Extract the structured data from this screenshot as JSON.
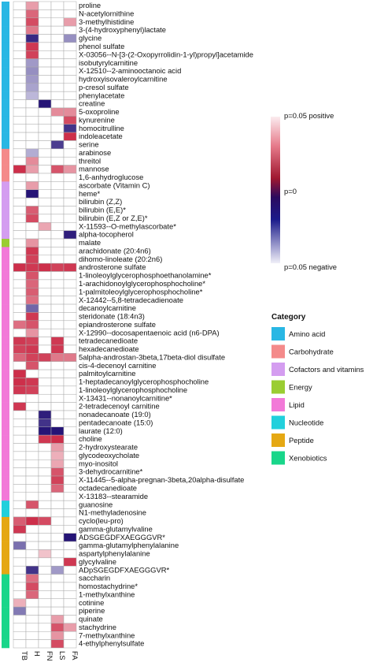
{
  "chart_data": {
    "type": "heatmap",
    "columns": [
      "TB",
      "H",
      "FN",
      "LS",
      "FA"
    ],
    "color_scale": {
      "labels": [
        "p=0.05 positive",
        "p=0",
        "p=0.05 negative"
      ],
      "colors": [
        "#f2c6ce",
        "#d53044",
        "#2b0a5e",
        "#1a1a8a",
        "#d8d6ec"
      ]
    },
    "category_legend": {
      "title": "Category",
      "items": [
        {
          "name": "Amino acid",
          "color": "#29b7e4"
        },
        {
          "name": "Carbohydrate",
          "color": "#f48a8a"
        },
        {
          "name": "Cofactors and vitamins",
          "color": "#d49df0"
        },
        {
          "name": "Energy",
          "color": "#9acd32"
        },
        {
          "name": "Lipid",
          "color": "#f279d8"
        },
        {
          "name": "Nucleotide",
          "color": "#22d0dc"
        },
        {
          "name": "Peptide",
          "color": "#e5a813"
        },
        {
          "name": "Xenobiotics",
          "color": "#19d68a"
        }
      ]
    },
    "rows": [
      {
        "label": "proline",
        "category": "Amino acid",
        "values": [
          0,
          0.3,
          0,
          0,
          0
        ]
      },
      {
        "label": "N-acetylornithine",
        "category": "Amino acid",
        "values": [
          0,
          0.6,
          0,
          0,
          0
        ]
      },
      {
        "label": "3-methylhistidine",
        "category": "Amino acid",
        "values": [
          0,
          0.75,
          0,
          0,
          0.3
        ]
      },
      {
        "label": "3-(4-hydroxyphenyl)lactate",
        "category": "Amino acid",
        "values": [
          0,
          0.5,
          0,
          0,
          0
        ]
      },
      {
        "label": "glycine",
        "category": "Amino acid",
        "values": [
          0,
          -0.85,
          0,
          0,
          -0.35
        ]
      },
      {
        "label": "phenol sulfate",
        "category": "Amino acid",
        "values": [
          0,
          0.85,
          0,
          0,
          0
        ]
      },
      {
        "label": "X-03056--N-[3-(2-Oxopyrrolidin-1-yl)propyl]acetamide",
        "category": "Amino acid",
        "values": [
          0,
          0.8,
          0,
          0,
          0
        ]
      },
      {
        "label": "isobutyrylcarnitine",
        "category": "Amino acid",
        "values": [
          0,
          -0.3,
          0,
          0,
          0
        ]
      },
      {
        "label": "X-12510--2-aminooctanoic acid",
        "category": "Amino acid",
        "values": [
          0,
          -0.35,
          0,
          0,
          0
        ]
      },
      {
        "label": "hydroxyisovaleroylcarnitine",
        "category": "Amino acid",
        "values": [
          0,
          -0.3,
          0,
          0,
          0
        ]
      },
      {
        "label": "p-cresol sulfate",
        "category": "Amino acid",
        "values": [
          0,
          -0.25,
          0,
          0,
          0
        ]
      },
      {
        "label": "phenylacetate",
        "category": "Amino acid",
        "values": [
          0,
          -0.15,
          0,
          0,
          0
        ]
      },
      {
        "label": "creatine",
        "category": "Amino acid",
        "values": [
          0,
          0,
          -0.95,
          0,
          0
        ]
      },
      {
        "label": "5-oxoproline",
        "category": "Amino acid",
        "values": [
          0,
          0,
          0,
          0.4,
          0.4
        ]
      },
      {
        "label": "kynurenine",
        "category": "Amino acid",
        "values": [
          0,
          0,
          0,
          0,
          0.75
        ]
      },
      {
        "label": "homocitrulline",
        "category": "Amino acid",
        "values": [
          0,
          0,
          0,
          0,
          -0.8
        ]
      },
      {
        "label": "indoleacetate",
        "category": "Amino acid",
        "values": [
          0,
          0,
          0,
          0,
          0.9
        ]
      },
      {
        "label": "serine",
        "category": "Amino acid",
        "values": [
          0,
          0,
          0,
          -0.75,
          0
        ]
      },
      {
        "label": "arabinose",
        "category": "Carbohydrate",
        "values": [
          0,
          -0.2,
          0,
          0,
          0
        ]
      },
      {
        "label": "threitol",
        "category": "Carbohydrate",
        "values": [
          0,
          0.4,
          0,
          0,
          0
        ]
      },
      {
        "label": "mannose",
        "category": "Carbohydrate",
        "values": [
          0.9,
          0.3,
          0,
          0.7,
          0.35
        ]
      },
      {
        "label": "1,6-anhydroglucose",
        "category": "Carbohydrate",
        "values": [
          0,
          0,
          0,
          0,
          0
        ]
      },
      {
        "label": "ascorbate (Vitamin C)",
        "category": "Cofactors and vitamins",
        "values": [
          0,
          0.3,
          0,
          0,
          0
        ]
      },
      {
        "label": "heme*",
        "category": "Cofactors and vitamins",
        "values": [
          0,
          -0.95,
          0,
          0,
          0
        ]
      },
      {
        "label": "bilirubin (Z,Z)",
        "category": "Cofactors and vitamins",
        "values": [
          0,
          0,
          0,
          0,
          0
        ]
      },
      {
        "label": "bilirubin (E,E)*",
        "category": "Cofactors and vitamins",
        "values": [
          0,
          0.65,
          0,
          0,
          0
        ]
      },
      {
        "label": "bilirubin (E,Z or Z,E)*",
        "category": "Cofactors and vitamins",
        "values": [
          0,
          0.75,
          0,
          0,
          0
        ]
      },
      {
        "label": "X-11593--O-methylascorbate*",
        "category": "Cofactors and vitamins",
        "values": [
          0,
          0,
          0.25,
          0,
          0
        ]
      },
      {
        "label": "alpha-tocopherol",
        "category": "Cofactors and vitamins",
        "values": [
          0,
          0,
          0,
          0,
          -0.9
        ]
      },
      {
        "label": "malate",
        "category": "Energy",
        "values": [
          0,
          0.35,
          0,
          0,
          0
        ]
      },
      {
        "label": "arachidonate (20:4n6)",
        "category": "Lipid",
        "values": [
          0,
          0.85,
          0,
          0,
          0
        ]
      },
      {
        "label": "dihomo-linoleate (20:2n6)",
        "category": "Lipid",
        "values": [
          0,
          0.8,
          0,
          0,
          0
        ]
      },
      {
        "label": "androsterone sulfate",
        "category": "Lipid",
        "values": [
          0.9,
          0.85,
          0.9,
          0.8,
          0.85
        ]
      },
      {
        "label": "1-linoleoylglycerophosphoethanolamine*",
        "category": "Lipid",
        "values": [
          0,
          0.7,
          0,
          0,
          0
        ]
      },
      {
        "label": "1-arachidonoylglycerophosphocholine*",
        "category": "Lipid",
        "values": [
          0,
          0.6,
          0,
          0,
          0
        ]
      },
      {
        "label": "1-palmitoleoylglycerophosphocholine*",
        "category": "Lipid",
        "values": [
          0,
          0.65,
          0,
          0,
          0
        ]
      },
      {
        "label": "X-12442--5,8-tetradecadienoate",
        "category": "Lipid",
        "values": [
          0,
          0.55,
          0,
          0,
          0
        ]
      },
      {
        "label": "decanoylcarnitine",
        "category": "Lipid",
        "values": [
          0,
          -0.55,
          0,
          0,
          0
        ]
      },
      {
        "label": "steridonate (18:4n3)",
        "category": "Lipid",
        "values": [
          0,
          0.85,
          0,
          0,
          0
        ]
      },
      {
        "label": "epiandrosterone sulfate",
        "category": "Lipid",
        "values": [
          0.55,
          0.7,
          0,
          0,
          0
        ]
      },
      {
        "label": "X-12990--docosapentaenoic acid (n6-DPA)",
        "category": "Lipid",
        "values": [
          0,
          0.35,
          0,
          0,
          0
        ]
      },
      {
        "label": "tetradecanedioate",
        "category": "Lipid",
        "values": [
          0.85,
          0.8,
          0,
          0.85,
          0
        ]
      },
      {
        "label": "hexadecanedioate",
        "category": "Lipid",
        "values": [
          0.8,
          0.85,
          0,
          0.85,
          0
        ]
      },
      {
        "label": "5alpha-androstan-3beta,17beta-diol disulfate",
        "category": "Lipid",
        "values": [
          0.6,
          0.8,
          0.8,
          0.5,
          0.5
        ]
      },
      {
        "label": "cis-4-decenoyl carnitine",
        "category": "Lipid",
        "values": [
          0,
          0.7,
          0,
          0,
          0
        ]
      },
      {
        "label": "palmitoylcarnitine",
        "category": "Lipid",
        "values": [
          0.9,
          0,
          0,
          0,
          0
        ]
      },
      {
        "label": "1-heptadecanoylglycerophosphocholine",
        "category": "Lipid",
        "values": [
          0.9,
          0.85,
          0,
          0,
          0
        ]
      },
      {
        "label": "1-linoleoylglycerophosphocholine",
        "category": "Lipid",
        "values": [
          0.85,
          0.8,
          0,
          0,
          0
        ]
      },
      {
        "label": "X-13431--nonanoylcarnitine*",
        "category": "Lipid",
        "values": [
          0,
          0,
          0,
          0,
          0
        ]
      },
      {
        "label": "2-tetradecenoyl carnitine",
        "category": "Lipid",
        "values": [
          0.85,
          0,
          0,
          0,
          0
        ]
      },
      {
        "label": "nonadecanoate (19:0)",
        "category": "Lipid",
        "values": [
          0,
          0,
          -0.9,
          0,
          0
        ]
      },
      {
        "label": "pentadecanoate (15:0)",
        "category": "Lipid",
        "values": [
          0,
          0,
          -0.8,
          0,
          0
        ]
      },
      {
        "label": "laurate (12:0)",
        "category": "Lipid",
        "values": [
          0,
          0,
          -0.95,
          -0.95,
          0
        ]
      },
      {
        "label": "choline",
        "category": "Lipid",
        "values": [
          0,
          0,
          0.85,
          0.9,
          0
        ]
      },
      {
        "label": "2-hydroxystearate",
        "category": "Lipid",
        "values": [
          0,
          0,
          0,
          0.3,
          0
        ]
      },
      {
        "label": "glycodeoxycholate",
        "category": "Lipid",
        "values": [
          0,
          0,
          0,
          0.2,
          0
        ]
      },
      {
        "label": "myo-inositol",
        "category": "Lipid",
        "values": [
          0,
          0,
          0,
          0.25,
          0
        ]
      },
      {
        "label": "3-dehydrocarnitine*",
        "category": "Lipid",
        "values": [
          0,
          0,
          0,
          0.7,
          0
        ]
      },
      {
        "label": "X-11445--5-alpha-pregnan-3beta,20alpha-disulfate",
        "category": "Lipid",
        "values": [
          0,
          0,
          0,
          0.8,
          0
        ]
      },
      {
        "label": "octadecanedioate",
        "category": "Lipid",
        "values": [
          0,
          0,
          0,
          0.6,
          0
        ]
      },
      {
        "label": "X-13183--stearamide",
        "category": "Lipid",
        "values": [
          0,
          0,
          0,
          0,
          0
        ]
      },
      {
        "label": "guanosine",
        "category": "Nucleotide",
        "values": [
          0,
          0.7,
          0,
          0,
          0
        ]
      },
      {
        "label": "N1-methyladenosine",
        "category": "Nucleotide",
        "values": [
          0,
          0,
          0,
          0,
          0
        ]
      },
      {
        "label": "cyclo(leu-pro)",
        "category": "Peptide",
        "values": [
          0.65,
          0.9,
          0.75,
          0,
          0
        ]
      },
      {
        "label": "gamma-glutamylvaline",
        "category": "Peptide",
        "values": [
          0.85,
          0,
          0,
          0,
          0
        ]
      },
      {
        "label": "ADSGEGDFXAEGGGVR*",
        "category": "Peptide",
        "values": [
          0,
          0,
          0,
          0,
          -0.95
        ]
      },
      {
        "label": "gamma-glutamylphenylalanine",
        "category": "Peptide",
        "values": [
          -0.5,
          0,
          0,
          0,
          0
        ]
      },
      {
        "label": "aspartylphenylalanine",
        "category": "Peptide",
        "values": [
          0,
          0,
          0.1,
          0,
          0
        ]
      },
      {
        "label": "glycylvaline",
        "category": "Peptide",
        "values": [
          0,
          0,
          0,
          0,
          0.85
        ]
      },
      {
        "label": "ADpSGEGDFXAEGGGVR*",
        "category": "Peptide",
        "values": [
          0,
          -0.8,
          0,
          -0.3,
          0
        ]
      },
      {
        "label": "saccharin",
        "category": "Xenobiotics",
        "values": [
          0,
          0.55,
          0,
          0,
          0
        ]
      },
      {
        "label": "homostachydrine*",
        "category": "Xenobiotics",
        "values": [
          0,
          0.75,
          0,
          0,
          0
        ]
      },
      {
        "label": "1-methylxanthine",
        "category": "Xenobiotics",
        "values": [
          0,
          0.6,
          0,
          0,
          0
        ]
      },
      {
        "label": "cotinine",
        "category": "Xenobiotics",
        "values": [
          0.2,
          0,
          0,
          0,
          0
        ]
      },
      {
        "label": "piperine",
        "category": "Xenobiotics",
        "values": [
          -0.45,
          0,
          0,
          0,
          0
        ]
      },
      {
        "label": "quinate",
        "category": "Xenobiotics",
        "values": [
          0,
          0,
          0,
          0.3,
          0
        ]
      },
      {
        "label": "stachydrine",
        "category": "Xenobiotics",
        "values": [
          0,
          0,
          0,
          0.7,
          0.3
        ]
      },
      {
        "label": "7-methylxanthine",
        "category": "Xenobiotics",
        "values": [
          0,
          0,
          0,
          0.35,
          0
        ]
      },
      {
        "label": "4-ethylphenylsulfate",
        "category": "Xenobiotics",
        "values": [
          0,
          0,
          0,
          0.75,
          0
        ]
      }
    ]
  }
}
